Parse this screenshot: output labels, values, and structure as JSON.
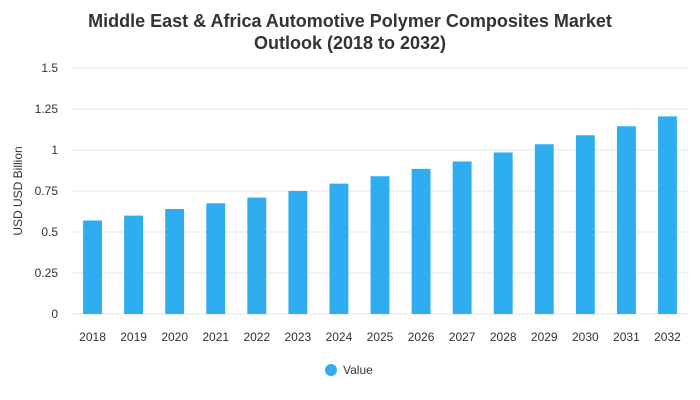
{
  "chart_data": {
    "type": "bar",
    "title_lines": [
      "Middle East & Africa Automotive Polymer Composites Market",
      "Outlook (2018 to 2032)"
    ],
    "ylabel": "USD USD Billion",
    "xlabel": "",
    "categories": [
      "2018",
      "2019",
      "2020",
      "2021",
      "2022",
      "2023",
      "2024",
      "2025",
      "2026",
      "2027",
      "2028",
      "2029",
      "2030",
      "2031",
      "2032"
    ],
    "series": [
      {
        "name": "Value",
        "color": "#2eaef0",
        "values": [
          0.57,
          0.6,
          0.64,
          0.675,
          0.71,
          0.75,
          0.795,
          0.84,
          0.885,
          0.93,
          0.985,
          1.035,
          1.09,
          1.145,
          1.205
        ]
      }
    ],
    "ylim": [
      0,
      1.5
    ],
    "yticks": [
      "0",
      "0.25",
      "0.5",
      "0.75",
      "1",
      "1.25",
      "1.5"
    ],
    "ytick_values": [
      0,
      0.25,
      0.5,
      0.75,
      1,
      1.25,
      1.5
    ],
    "grid": true,
    "legend_position": "bottom"
  }
}
